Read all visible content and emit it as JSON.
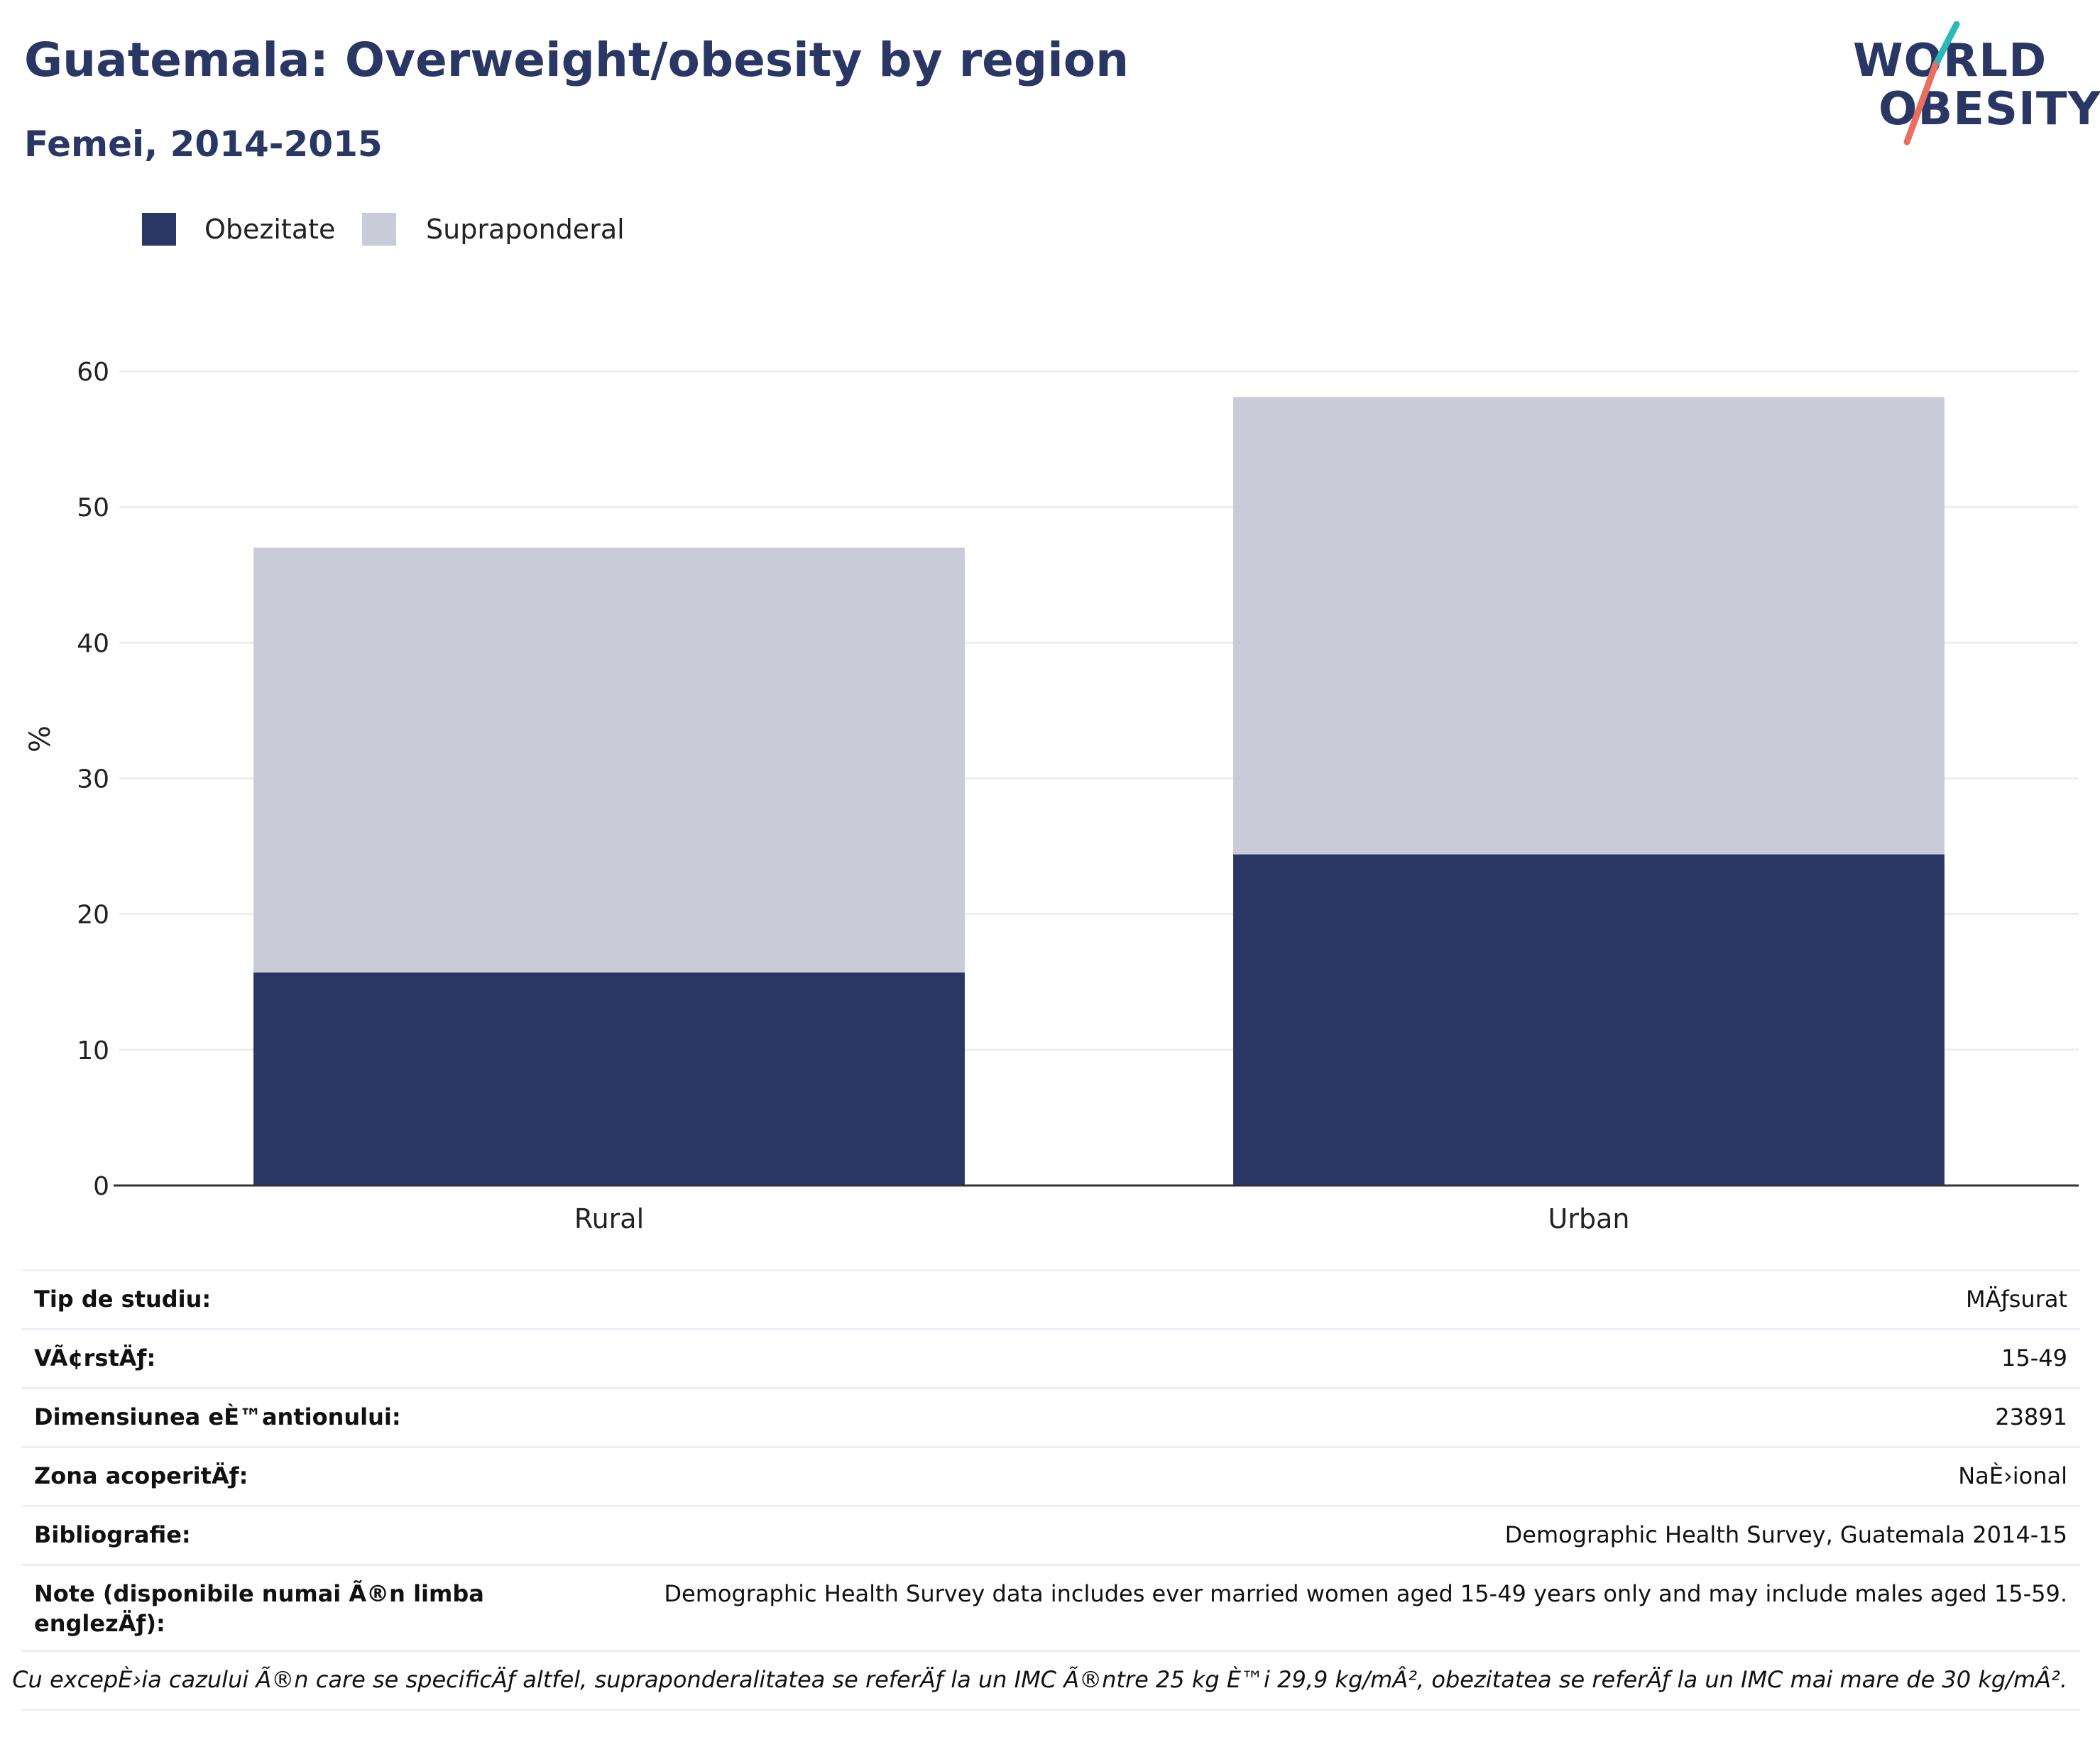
{
  "header": {
    "title": "Guatemala: Overweight/obesity by region",
    "subtitle": "Femei, 2014-2015"
  },
  "logo": {
    "line1": "WORLD",
    "line2": "OBESITY"
  },
  "legend": {
    "items": [
      {
        "label": "Obezitate",
        "color": "#2a3764"
      },
      {
        "label": "Supraponderal",
        "color": "#c9ccd8"
      }
    ]
  },
  "chart_data": {
    "type": "bar",
    "stacked": true,
    "categories": [
      "Rural",
      "Urban"
    ],
    "series": [
      {
        "name": "Obezitate",
        "values": [
          15.7,
          24.4
        ],
        "color": "#2a3764"
      },
      {
        "name": "Supraponderal",
        "values": [
          31.3,
          33.7
        ],
        "color": "#c9ccd8"
      }
    ],
    "title": "Guatemala: Overweight/obesity by region",
    "subtitle": "Femei, 2014-2015",
    "xlabel": "",
    "ylabel": "%",
    "ylim": [
      0,
      60
    ],
    "yticks": [
      0,
      10,
      20,
      30,
      40,
      50,
      60
    ],
    "grid": true,
    "legend_position": "top-left"
  },
  "info": {
    "rows": [
      {
        "label": "Tip de studiu:",
        "value": "MÄƒsurat"
      },
      {
        "label": "VÃ¢rstÄƒ:",
        "value": "15-49"
      },
      {
        "label": "Dimensiunea eÈ™antionului:",
        "value": "23891"
      },
      {
        "label": "Zona acoperitÄƒ:",
        "value": "NaÈ›ional"
      },
      {
        "label": "Bibliografie:",
        "value": "Demographic Health Survey, Guatemala 2014-15"
      },
      {
        "label": "Note (disponibile numai Ã®n limba englezÄƒ):",
        "value": "Demographic Health Survey data includes ever married women aged 15-49 years only and may include males aged 15-59."
      }
    ],
    "footnote": "Cu excepÈ›ia cazului Ã®n care se specificÄƒ altfel, supraponderalitatea se referÄƒ la un IMC Ã®ntre 25 kg È™i 29,9 kg/mÂ², obezitatea se referÄƒ la un IMC mai mare de 30 kg/mÂ²."
  }
}
